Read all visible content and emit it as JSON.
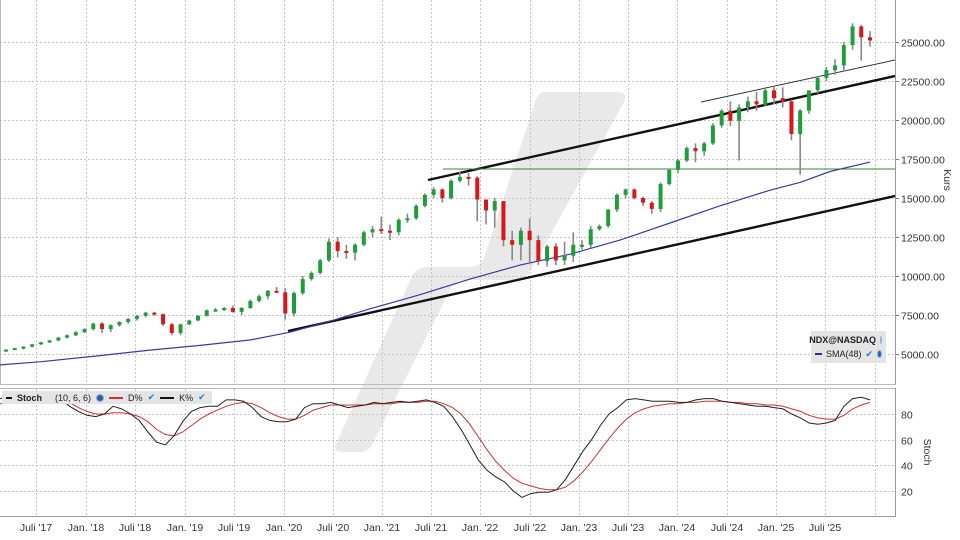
{
  "chart_data": [
    {
      "type": "candlestick",
      "title": "NDX@NASDAQ",
      "ylabel": "Kurs",
      "ylim": [
        4000,
        26500
      ],
      "y_ticks": [
        "25000.00",
        "22500.00",
        "20000.00",
        "17500.00",
        "15000.00",
        "12500.00",
        "10000.00",
        "7500.00",
        "5000.00"
      ],
      "x_ticks": [
        "Juli '17",
        "Jan. '18",
        "Juli '18",
        "Jan. '19",
        "Juli '19",
        "Jan. '20",
        "Juli '20",
        "Jan. '21",
        "Juli '21",
        "Jan. '22",
        "Juli '22",
        "Jan. '23",
        "Juli '23",
        "Jan. '24",
        "Juli '24",
        "Jan. '25",
        "Juli '25"
      ],
      "interval": "monthly",
      "grid": true,
      "legend_position": "bottom-right",
      "legend": [
        "NDX@NASDAQ",
        "SMA(48)"
      ],
      "series": [
        {
          "name": "NDX@NASDAQ",
          "kind": "ohlc",
          "ohlc": [
            [
              5200,
              5300,
              5150,
              5280
            ],
            [
              5280,
              5400,
              5250,
              5380
            ],
            [
              5380,
              5500,
              5300,
              5470
            ],
            [
              5470,
              5650,
              5420,
              5620
            ],
            [
              5620,
              5780,
              5580,
              5750
            ],
            [
              5750,
              5900,
              5700,
              5870
            ],
            [
              5870,
              6100,
              5820,
              6050
            ],
            [
              6050,
              6250,
              6000,
              6200
            ],
            [
              6200,
              6450,
              6150,
              6400
            ],
            [
              6400,
              6650,
              6350,
              6600
            ],
            [
              6600,
              7000,
              6500,
              6950
            ],
            [
              6950,
              7050,
              6350,
              6600
            ],
            [
              6600,
              6900,
              6400,
              6850
            ],
            [
              6850,
              7100,
              6750,
              7050
            ],
            [
              7050,
              7300,
              6950,
              7250
            ],
            [
              7250,
              7500,
              7150,
              7450
            ],
            [
              7450,
              7700,
              7350,
              7650
            ],
            [
              7650,
              7700,
              7450,
              7550
            ],
            [
              7550,
              7600,
              6800,
              6900
            ],
            [
              6900,
              7000,
              6200,
              6350
            ],
            [
              6350,
              6950,
              6200,
              6900
            ],
            [
              6900,
              7200,
              6850,
              7150
            ],
            [
              7150,
              7500,
              7100,
              7450
            ],
            [
              7450,
              7850,
              7400,
              7800
            ],
            [
              7800,
              7950,
              7700,
              7850
            ],
            [
              7850,
              8000,
              7750,
              7950
            ],
            [
              7950,
              8100,
              7650,
              7700
            ],
            [
              7700,
              8000,
              7500,
              7950
            ],
            [
              7950,
              8500,
              7900,
              8400
            ],
            [
              8400,
              8800,
              8300,
              8700
            ],
            [
              8700,
              9100,
              8500,
              9050
            ],
            [
              9050,
              9300,
              8900,
              8950
            ],
            [
              8950,
              9200,
              7200,
              7600
            ],
            [
              7600,
              9000,
              7400,
              8900
            ],
            [
              8900,
              10000,
              8800,
              9800
            ],
            [
              9800,
              10300,
              9700,
              10200
            ],
            [
              10200,
              11100,
              10100,
              11000
            ],
            [
              11000,
              12400,
              10900,
              12200
            ],
            [
              12200,
              12500,
              11200,
              11600
            ],
            [
              11600,
              12000,
              11100,
              11500
            ],
            [
              11500,
              12100,
              11000,
              12000
            ],
            [
              12000,
              12900,
              11900,
              12800
            ],
            [
              12800,
              13200,
              12500,
              13000
            ],
            [
              13000,
              13800,
              12700,
              12900
            ],
            [
              12900,
              13300,
              12300,
              12800
            ],
            [
              12800,
              13700,
              12600,
              13600
            ],
            [
              13600,
              14000,
              13400,
              13700
            ],
            [
              13700,
              14600,
              13600,
              14500
            ],
            [
              14500,
              15300,
              14400,
              15200
            ],
            [
              15200,
              15700,
              15000,
              15550
            ],
            [
              15550,
              15600,
              14700,
              15000
            ],
            [
              15000,
              16200,
              14900,
              16100
            ],
            [
              16100,
              16700,
              16000,
              16350
            ],
            [
              16350,
              16600,
              15800,
              16300
            ],
            [
              16300,
              16400,
              13500,
              14900
            ],
            [
              14900,
              14900,
              13300,
              14200
            ],
            [
              14200,
              15000,
              13100,
              14800
            ],
            [
              14800,
              14800,
              11900,
              12300
            ],
            [
              12300,
              12900,
              11000,
              12000
            ],
            [
              12000,
              13100,
              11000,
              12900
            ],
            [
              12900,
              13700,
              10900,
              12300
            ],
            [
              12300,
              12600,
              10700,
              10950
            ],
            [
              10950,
              12000,
              10600,
              11900
            ],
            [
              11900,
              12100,
              10700,
              11000
            ],
            [
              11000,
              12200,
              10700,
              11300
            ],
            [
              11300,
              12800,
              10900,
              12000
            ],
            [
              12000,
              12300,
              11700,
              12000
            ],
            [
              12000,
              13200,
              11800,
              13000
            ],
            [
              13000,
              13300,
              12900,
              13200
            ],
            [
              13200,
              14300,
              13100,
              14250
            ],
            [
              14250,
              15300,
              14100,
              15200
            ],
            [
              15200,
              15600,
              15000,
              15550
            ],
            [
              15550,
              15600,
              14900,
              15000
            ],
            [
              15000,
              15100,
              14500,
              14700
            ],
            [
              14700,
              14800,
              14000,
              14300
            ],
            [
              14300,
              16000,
              14100,
              15900
            ],
            [
              15900,
              16900,
              15800,
              16800
            ],
            [
              16800,
              17500,
              16600,
              17400
            ],
            [
              17400,
              18300,
              17300,
              18200
            ],
            [
              18200,
              18500,
              17300,
              18000
            ],
            [
              18000,
              18600,
              17700,
              18500
            ],
            [
              18500,
              19800,
              18400,
              19650
            ],
            [
              19650,
              20700,
              19500,
              20600
            ],
            [
              20600,
              21200,
              19600,
              19950
            ],
            [
              19950,
              21000,
              17400,
              20800
            ],
            [
              20800,
              21500,
              20500,
              21200
            ],
            [
              21200,
              21800,
              20600,
              21000
            ],
            [
              21000,
              22000,
              20900,
              21900
            ],
            [
              21900,
              22200,
              21000,
              21400
            ],
            [
              21400,
              22100,
              20800,
              21200
            ],
            [
              21200,
              21300,
              18700,
              19100
            ],
            [
              19100,
              20700,
              16500,
              20600
            ],
            [
              20600,
              21900,
              20400,
              21900
            ],
            [
              21900,
              22800,
              21700,
              22700
            ],
            [
              22700,
              23400,
              22500,
              23200
            ],
            [
              23200,
              23900,
              22900,
              23500
            ],
            [
              23500,
              25000,
              23200,
              24800
            ],
            [
              24800,
              26200,
              24500,
              26000
            ],
            [
              26000,
              26100,
              23800,
              25300
            ],
            [
              25300,
              25700,
              24700,
              25100
            ]
          ]
        },
        {
          "name": "SMA(48)",
          "color": "#3a3aa0",
          "points": [
            [
              0,
              4300
            ],
            [
              40,
              4500
            ],
            [
              100,
              4900
            ],
            [
              150,
              5250
            ],
            [
              200,
              5550
            ],
            [
              250,
              5900
            ],
            [
              290,
              6400
            ],
            [
              330,
              7100
            ],
            [
              370,
              7900
            ],
            [
              420,
              8800
            ],
            [
              470,
              9800
            ],
            [
              520,
              10700
            ],
            [
              570,
              11400
            ],
            [
              620,
              12300
            ],
            [
              670,
              13400
            ],
            [
              720,
              14500
            ],
            [
              770,
              15500
            ],
            [
              800,
              16000
            ],
            [
              830,
              16700
            ],
            [
              870,
              17300
            ]
          ]
        }
      ],
      "annotations": [
        {
          "type": "trendline",
          "label": "upper channel",
          "from": [
            "Juli '21",
            16100
          ],
          "to": [
            "end",
            22800
          ],
          "color": "#000000"
        },
        {
          "type": "trendline",
          "label": "lower channel",
          "from": [
            "Feb '20",
            6500
          ],
          "to": [
            "end",
            15100
          ],
          "color": "#000000"
        },
        {
          "type": "trendline",
          "label": "thin resistance",
          "from": [
            "Juni '24",
            20600
          ],
          "to": [
            "end",
            23800
          ],
          "color": "#333333"
        },
        {
          "type": "horizontal",
          "label": "support",
          "value": 16800,
          "color": "#2e8b2e"
        }
      ]
    },
    {
      "type": "line",
      "title": "Stoch",
      "params": "(10, 6, 6)",
      "ylabel": "Stoch",
      "ylim": [
        0,
        100
      ],
      "y_ticks": [
        80,
        60,
        40,
        20
      ],
      "legend": [
        "D%",
        "K%"
      ],
      "series": [
        {
          "name": "K%",
          "color": "#222222",
          "values": [
            92,
            93,
            93,
            94,
            94,
            95,
            94,
            92,
            86,
            82,
            79,
            78,
            80,
            86,
            84,
            80,
            75,
            66,
            58,
            56,
            63,
            74,
            82,
            85,
            86,
            86,
            91,
            91,
            90,
            85,
            78,
            75,
            74,
            74,
            76,
            85,
            88,
            88,
            89,
            87,
            85,
            86,
            87,
            89,
            88,
            89,
            90,
            89,
            90,
            91,
            89,
            86,
            78,
            68,
            56,
            44,
            36,
            31,
            27,
            20,
            15,
            18,
            19,
            19,
            21,
            29,
            40,
            51,
            60,
            71,
            80,
            85,
            91,
            92,
            91,
            90,
            90,
            90,
            89,
            89,
            91,
            92,
            92,
            90,
            89,
            88,
            87,
            86,
            86,
            85,
            84,
            80,
            77,
            73,
            72,
            73,
            75,
            86,
            92,
            93,
            91
          ]
        },
        {
          "name": "D%",
          "color": "#d03030",
          "values": [
            88,
            89,
            90,
            91,
            92,
            93,
            93,
            92,
            89,
            85,
            82,
            80,
            80,
            81,
            81,
            80,
            78,
            74,
            68,
            64,
            63,
            66,
            71,
            76,
            80,
            83,
            86,
            88,
            89,
            88,
            85,
            81,
            78,
            76,
            76,
            79,
            83,
            85,
            87,
            87,
            87,
            87,
            87,
            88,
            88,
            88,
            89,
            89,
            89,
            90,
            90,
            88,
            85,
            80,
            72,
            62,
            52,
            43,
            36,
            30,
            26,
            24,
            22,
            21,
            21,
            23,
            28,
            35,
            43,
            52,
            61,
            69,
            76,
            81,
            84,
            86,
            87,
            88,
            88,
            89,
            89,
            90,
            90,
            90,
            89,
            89,
            88,
            88,
            87,
            87,
            86,
            84,
            82,
            79,
            77,
            76,
            76,
            79,
            84,
            87,
            89
          ]
        }
      ]
    }
  ],
  "main_legend": {
    "symbol": "NDX@NASDAQ",
    "sma_label": "SMA(48)",
    "sma_color": "#2a2a9a"
  },
  "stoch_legend": {
    "title": "Stoch",
    "params": "(10, 6, 6)",
    "d_label": "D%",
    "k_label": "K%",
    "d_color": "#d03030",
    "k_color": "#111111"
  },
  "axis": {
    "main_ylabel": "Kurs",
    "stoch_ylabel": "Stoch"
  },
  "colors": {
    "up": "#1e9e3a",
    "down": "#d81818",
    "wick": "#888888",
    "grid": "#bdbdbd",
    "sma": "#3a3aa0",
    "support": "#2e8b2e",
    "watermark": "#e8e8e8"
  }
}
